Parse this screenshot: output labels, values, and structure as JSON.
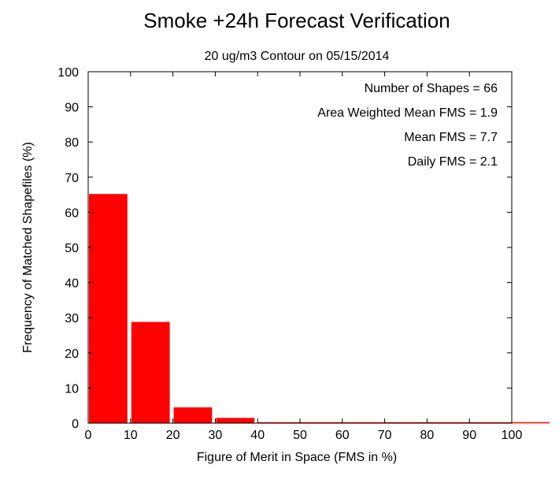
{
  "chart_data": {
    "type": "bar",
    "title": "Smoke +24h Forecast Verification",
    "subtitle": "20 ug/m3 Contour on 05/15/2014",
    "xlabel": "Figure of Merit in Space (FMS in %)",
    "ylabel": "Frequency of Matched Shapefiles (%)",
    "xlim": [
      0,
      100
    ],
    "ylim": [
      0,
      100
    ],
    "x_ticks": [
      "0",
      "10",
      "20",
      "30",
      "40",
      "50",
      "60",
      "70",
      "80",
      "90",
      "100"
    ],
    "y_ticks": [
      "0",
      "10",
      "20",
      "30",
      "40",
      "50",
      "60",
      "70",
      "80",
      "90",
      "100"
    ],
    "bins": [
      {
        "start": 0,
        "end": 10,
        "value": 65.2
      },
      {
        "start": 10,
        "end": 20,
        "value": 28.8
      },
      {
        "start": 20,
        "end": 30,
        "value": 4.5
      },
      {
        "start": 30,
        "end": 40,
        "value": 1.5
      },
      {
        "start": 40,
        "end": 50,
        "value": 0
      },
      {
        "start": 50,
        "end": 60,
        "value": 0
      },
      {
        "start": 60,
        "end": 70,
        "value": 0
      },
      {
        "start": 70,
        "end": 80,
        "value": 0
      },
      {
        "start": 80,
        "end": 90,
        "value": 0
      },
      {
        "start": 90,
        "end": 100,
        "value": 0
      }
    ],
    "bar_color": "#ff0000",
    "grid": false,
    "annotations": [
      "Number of Shapes = 66",
      "Area Weighted Mean FMS = 1.9",
      "Mean FMS = 7.7",
      "Daily FMS = 2.1"
    ]
  }
}
